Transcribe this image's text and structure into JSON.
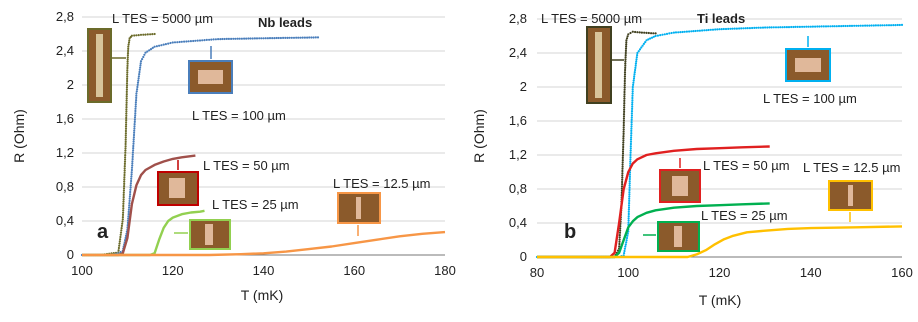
{
  "chart_data": [
    {
      "panel_letter": "a",
      "type": "line",
      "annotation_title": "Nb leads",
      "xlabel": "T (mK)",
      "ylabel": "R (Ohm)",
      "xlim": [
        100,
        180
      ],
      "ylim": [
        0,
        2.8
      ],
      "xticks": [
        "100",
        "120",
        "140",
        "160",
        "180"
      ],
      "yticks": [
        "0",
        "0,4",
        "0,8",
        "1,2",
        "1,6",
        "2",
        "2,4",
        "2,8"
      ],
      "grid": "horizontal",
      "series": [
        {
          "name": "L TES = 5000 µm",
          "color": "#6b6b2a",
          "style": "markers",
          "x": [
            104,
            108,
            109,
            109.6,
            110,
            110.2,
            110.5,
            111,
            113,
            116
          ],
          "y": [
            0,
            0.03,
            0.42,
            1.28,
            2.2,
            2.45,
            2.55,
            2.58,
            2.59,
            2.6
          ]
        },
        {
          "name": "L TES = 100 µm",
          "color": "#4a7ebb",
          "style": "markers",
          "x": [
            100,
            106,
            108,
            109,
            110,
            111,
            112,
            113,
            114,
            116,
            120,
            125,
            130,
            140,
            152
          ],
          "y": [
            0,
            0,
            0.02,
            0.05,
            0.3,
            1.0,
            1.9,
            2.28,
            2.38,
            2.45,
            2.5,
            2.52,
            2.54,
            2.55,
            2.56
          ]
        },
        {
          "name": "L TES = 50 µm",
          "color": "#a0504b",
          "style": "line",
          "x": [
            100,
            108,
            109,
            110,
            111,
            112,
            113,
            114,
            116,
            118,
            120,
            122,
            125
          ],
          "y": [
            0,
            0,
            0.02,
            0.2,
            0.6,
            0.82,
            0.94,
            1.0,
            1.06,
            1.1,
            1.13,
            1.15,
            1.17
          ]
        },
        {
          "name": "L TES = 25 µm",
          "color": "#92d050",
          "style": "line",
          "x": [
            100,
            115,
            116,
            117,
            118,
            119,
            120,
            122,
            124,
            126,
            127
          ],
          "y": [
            0,
            0,
            0.02,
            0.18,
            0.32,
            0.4,
            0.44,
            0.48,
            0.5,
            0.51,
            0.52
          ]
        },
        {
          "name": "L TES = 12.5 µm",
          "color": "#f79646",
          "style": "line",
          "x": [
            100,
            128,
            135,
            140,
            145,
            150,
            155,
            160,
            165,
            170,
            175,
            180
          ],
          "y": [
            0,
            0,
            0.01,
            0.02,
            0.04,
            0.07,
            0.1,
            0.14,
            0.18,
            0.22,
            0.25,
            0.27
          ]
        }
      ],
      "labels": [
        {
          "text": "L TES = 5000 µm",
          "series": 0
        },
        {
          "text": "L TES = 100 µm",
          "series": 1
        },
        {
          "text": "L TES = 50 µm",
          "series": 2
        },
        {
          "text": "L TES = 25 µm",
          "series": 3
        },
        {
          "text": "L TES = 12.5 µm",
          "series": 4
        }
      ]
    },
    {
      "panel_letter": "b",
      "type": "line",
      "annotation_title": "Ti leads",
      "xlabel": "T (mK)",
      "ylabel": "R (Ohm)",
      "xlim": [
        80,
        160
      ],
      "ylim": [
        0,
        2.8
      ],
      "xticks": [
        "80",
        "100",
        "120",
        "140",
        "160"
      ],
      "yticks": [
        "0",
        "0,4",
        "0,8",
        "1,2",
        "1,6",
        "2",
        "2,4",
        "2,8"
      ],
      "grid": "horizontal",
      "series": [
        {
          "name": "L TES = 5000 µm",
          "color": "#404020",
          "style": "markers",
          "x": [
            90,
            97,
            98,
            98.5,
            99,
            99.3,
            99.6,
            100,
            101,
            103,
            106
          ],
          "y": [
            0,
            0,
            0.1,
            0.6,
            1.5,
            2.2,
            2.55,
            2.62,
            2.65,
            2.64,
            2.63
          ]
        },
        {
          "name": "L TES = 100 µm",
          "color": "#00b0f0",
          "style": "markers",
          "x": [
            80,
            98,
            99,
            100,
            100.5,
            101,
            102,
            104,
            106,
            110,
            120,
            130,
            140,
            150,
            160
          ],
          "y": [
            0,
            0,
            0.02,
            0.3,
            1.2,
            2.0,
            2.4,
            2.55,
            2.6,
            2.64,
            2.68,
            2.7,
            2.71,
            2.72,
            2.73
          ]
        },
        {
          "name": "L TES = 50 µm",
          "color": "#e02020",
          "style": "line",
          "x": [
            80,
            96,
            97,
            98,
            99,
            100,
            101,
            102,
            104,
            106,
            110,
            115,
            120,
            125,
            131
          ],
          "y": [
            0,
            0,
            0.05,
            0.4,
            0.8,
            1.0,
            1.1,
            1.15,
            1.2,
            1.22,
            1.25,
            1.27,
            1.28,
            1.29,
            1.3
          ]
        },
        {
          "name": "L TES = 25 µm",
          "color": "#00b050",
          "style": "line",
          "x": [
            80,
            97,
            98,
            99,
            100,
            101,
            102,
            104,
            106,
            110,
            115,
            120,
            125,
            131
          ],
          "y": [
            0,
            0,
            0.05,
            0.2,
            0.35,
            0.42,
            0.47,
            0.52,
            0.55,
            0.58,
            0.6,
            0.61,
            0.62,
            0.63
          ]
        },
        {
          "name": "L TES = 12.5 µm",
          "color": "#ffc000",
          "style": "line",
          "x": [
            80,
            113,
            115,
            117,
            119,
            121,
            123,
            126,
            130,
            135,
            140,
            150,
            160
          ],
          "y": [
            0,
            0,
            0.03,
            0.08,
            0.15,
            0.21,
            0.25,
            0.29,
            0.31,
            0.33,
            0.34,
            0.35,
            0.36
          ]
        }
      ],
      "labels": [
        {
          "text": "L TES = 5000 µm",
          "series": 0
        },
        {
          "text": "L TES = 100 µm",
          "series": 1
        },
        {
          "text": "L TES = 50 µm",
          "series": 2
        },
        {
          "text": "L TES = 25 µm",
          "series": 3
        },
        {
          "text": "L TES = 12.5 µm",
          "series": 4
        }
      ]
    }
  ]
}
